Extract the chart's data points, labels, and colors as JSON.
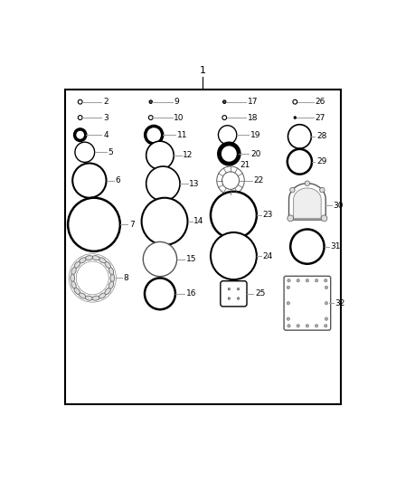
{
  "title": "1",
  "bg_color": "#ffffff",
  "border_color": "#000000",
  "line_color": "#999999",
  "text_color": "#000000",
  "fig_width": 4.38,
  "fig_height": 5.33,
  "dpi": 100
}
